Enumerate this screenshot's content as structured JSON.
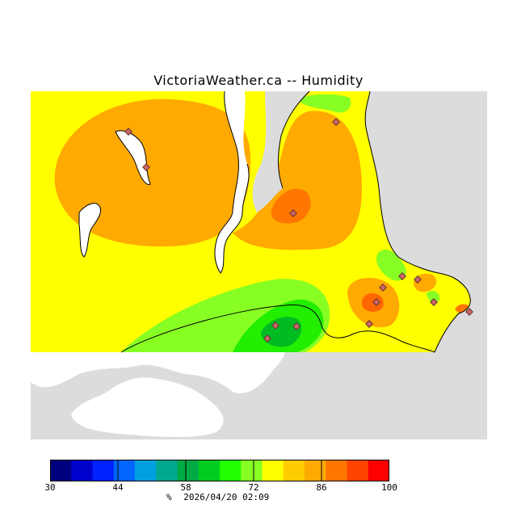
{
  "title": "VictoriaWeather.ca -- Humidity",
  "legend": {
    "min": 30,
    "max": 100,
    "tick_labels": [
      "30",
      "44",
      "58",
      "72",
      "86",
      "100"
    ],
    "colors": [
      "#00007f",
      "#0000cc",
      "#0022ff",
      "#0066ff",
      "#00a0e0",
      "#00a890",
      "#00aa44",
      "#00cc22",
      "#22ff00",
      "#88ff22",
      "#ffff00",
      "#ffcc00",
      "#ffaa00",
      "#ff7700",
      "#ff4400",
      "#ff0000"
    ]
  },
  "footer": {
    "unit": "%",
    "timestamp": "2026/04/20 02:09"
  },
  "map_colors": {
    "land_no_data": "#dcdcdc",
    "water": "#ffffff",
    "yellow": "#ffff00",
    "orange": "#ffaa00",
    "dark_orange": "#ff6600",
    "light_green": "#88ff22",
    "green": "#22ee00",
    "dark_green": "#00bb22",
    "station": "#cc6666"
  },
  "stations": [
    {
      "id": "s1"
    },
    {
      "id": "s2"
    },
    {
      "id": "s3"
    },
    {
      "id": "s4"
    },
    {
      "id": "s5"
    },
    {
      "id": "s6"
    },
    {
      "id": "s7"
    },
    {
      "id": "s8"
    },
    {
      "id": "s9"
    },
    {
      "id": "s10"
    },
    {
      "id": "s11"
    },
    {
      "id": "s12"
    },
    {
      "id": "s13"
    },
    {
      "id": "s14"
    }
  ]
}
